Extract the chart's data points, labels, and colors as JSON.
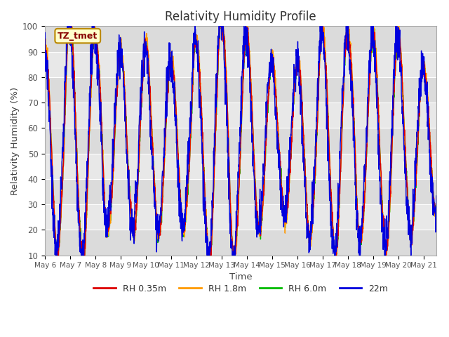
{
  "title": "Relativity Humidity Profile",
  "xlabel": "Time",
  "ylabel": "Relativity Humidity (%)",
  "ylim": [
    10,
    100
  ],
  "yticks": [
    10,
    20,
    30,
    40,
    50,
    60,
    70,
    80,
    90,
    100
  ],
  "xtick_labels": [
    "May 6",
    "May 7",
    "May 8",
    "May 9",
    "May 10",
    "May 11",
    "May 12",
    "May 13",
    "May 14",
    "May 15",
    "May 16",
    "May 17",
    "May 18",
    "May 19",
    "May 20",
    "May 21"
  ],
  "fig_facecolor": "#ffffff",
  "plot_facecolor": "#e8e8e8",
  "line_colors": {
    "RH 0.35m": "#dd0000",
    "RH 1.8m": "#ff9900",
    "RH 6.0m": "#00bb00",
    "22m": "#0000dd"
  },
  "legend_labels": [
    "RH 0.35m",
    "RH 1.8m",
    "RH 6.0m",
    "22m"
  ],
  "annotation_text": "TZ_tmet",
  "annotation_color": "#880000",
  "annotation_bg": "#ffffcc",
  "annotation_border": "#bb8800",
  "grid_color": "#ffffff",
  "grid_band_color": "#d8d8d8",
  "n_days": 15.5,
  "n_points": 2000,
  "seed": 123
}
